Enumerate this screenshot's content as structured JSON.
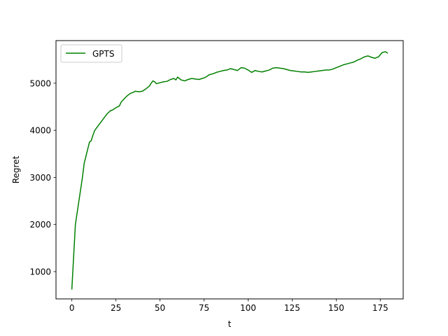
{
  "chart_data": {
    "type": "line",
    "title": "",
    "xlabel": "t",
    "ylabel": "Regret",
    "xlim": [
      -9,
      188
    ],
    "ylim": [
      420,
      5905
    ],
    "xticks": [
      0,
      25,
      50,
      75,
      100,
      125,
      150,
      175
    ],
    "yticks": [
      1000,
      2000,
      3000,
      4000,
      5000
    ],
    "grid": false,
    "legend_position": "upper-left",
    "series": [
      {
        "name": "GPTS",
        "color": "#008000",
        "x": [
          0,
          2,
          4,
          6,
          7,
          8,
          9,
          10,
          11,
          12,
          13,
          14,
          15,
          17,
          18,
          20,
          22,
          23,
          25,
          27,
          28,
          30,
          31,
          33,
          35,
          36,
          38,
          40,
          42,
          44,
          45,
          46,
          47,
          48,
          50,
          52,
          54,
          56,
          58,
          59,
          60,
          62,
          64,
          66,
          68,
          70,
          72,
          74,
          76,
          78,
          80,
          82,
          84,
          86,
          88,
          90,
          92,
          94,
          96,
          98,
          100,
          102,
          104,
          106,
          108,
          110,
          112,
          114,
          116,
          118,
          120,
          122,
          124,
          126,
          128,
          130,
          132,
          134,
          136,
          138,
          140,
          142,
          144,
          146,
          148,
          150,
          152,
          154,
          156,
          158,
          160,
          162,
          164,
          166,
          168,
          170,
          172,
          174,
          176,
          178,
          179
        ],
        "y": [
          630,
          2000,
          2500,
          3000,
          3300,
          3450,
          3600,
          3750,
          3780,
          3900,
          4000,
          4050,
          4100,
          4200,
          4250,
          4350,
          4420,
          4430,
          4480,
          4520,
          4600,
          4680,
          4720,
          4780,
          4810,
          4830,
          4820,
          4830,
          4880,
          4940,
          5000,
          5050,
          5030,
          4990,
          5010,
          5030,
          5040,
          5080,
          5100,
          5070,
          5130,
          5070,
          5050,
          5080,
          5100,
          5090,
          5080,
          5100,
          5130,
          5180,
          5200,
          5230,
          5250,
          5270,
          5280,
          5310,
          5290,
          5270,
          5330,
          5320,
          5280,
          5230,
          5270,
          5250,
          5240,
          5260,
          5280,
          5320,
          5330,
          5320,
          5310,
          5290,
          5270,
          5260,
          5250,
          5240,
          5240,
          5230,
          5240,
          5250,
          5260,
          5270,
          5280,
          5280,
          5300,
          5330,
          5360,
          5390,
          5410,
          5430,
          5450,
          5490,
          5520,
          5560,
          5580,
          5550,
          5530,
          5560,
          5650,
          5670,
          5640
        ]
      }
    ]
  }
}
